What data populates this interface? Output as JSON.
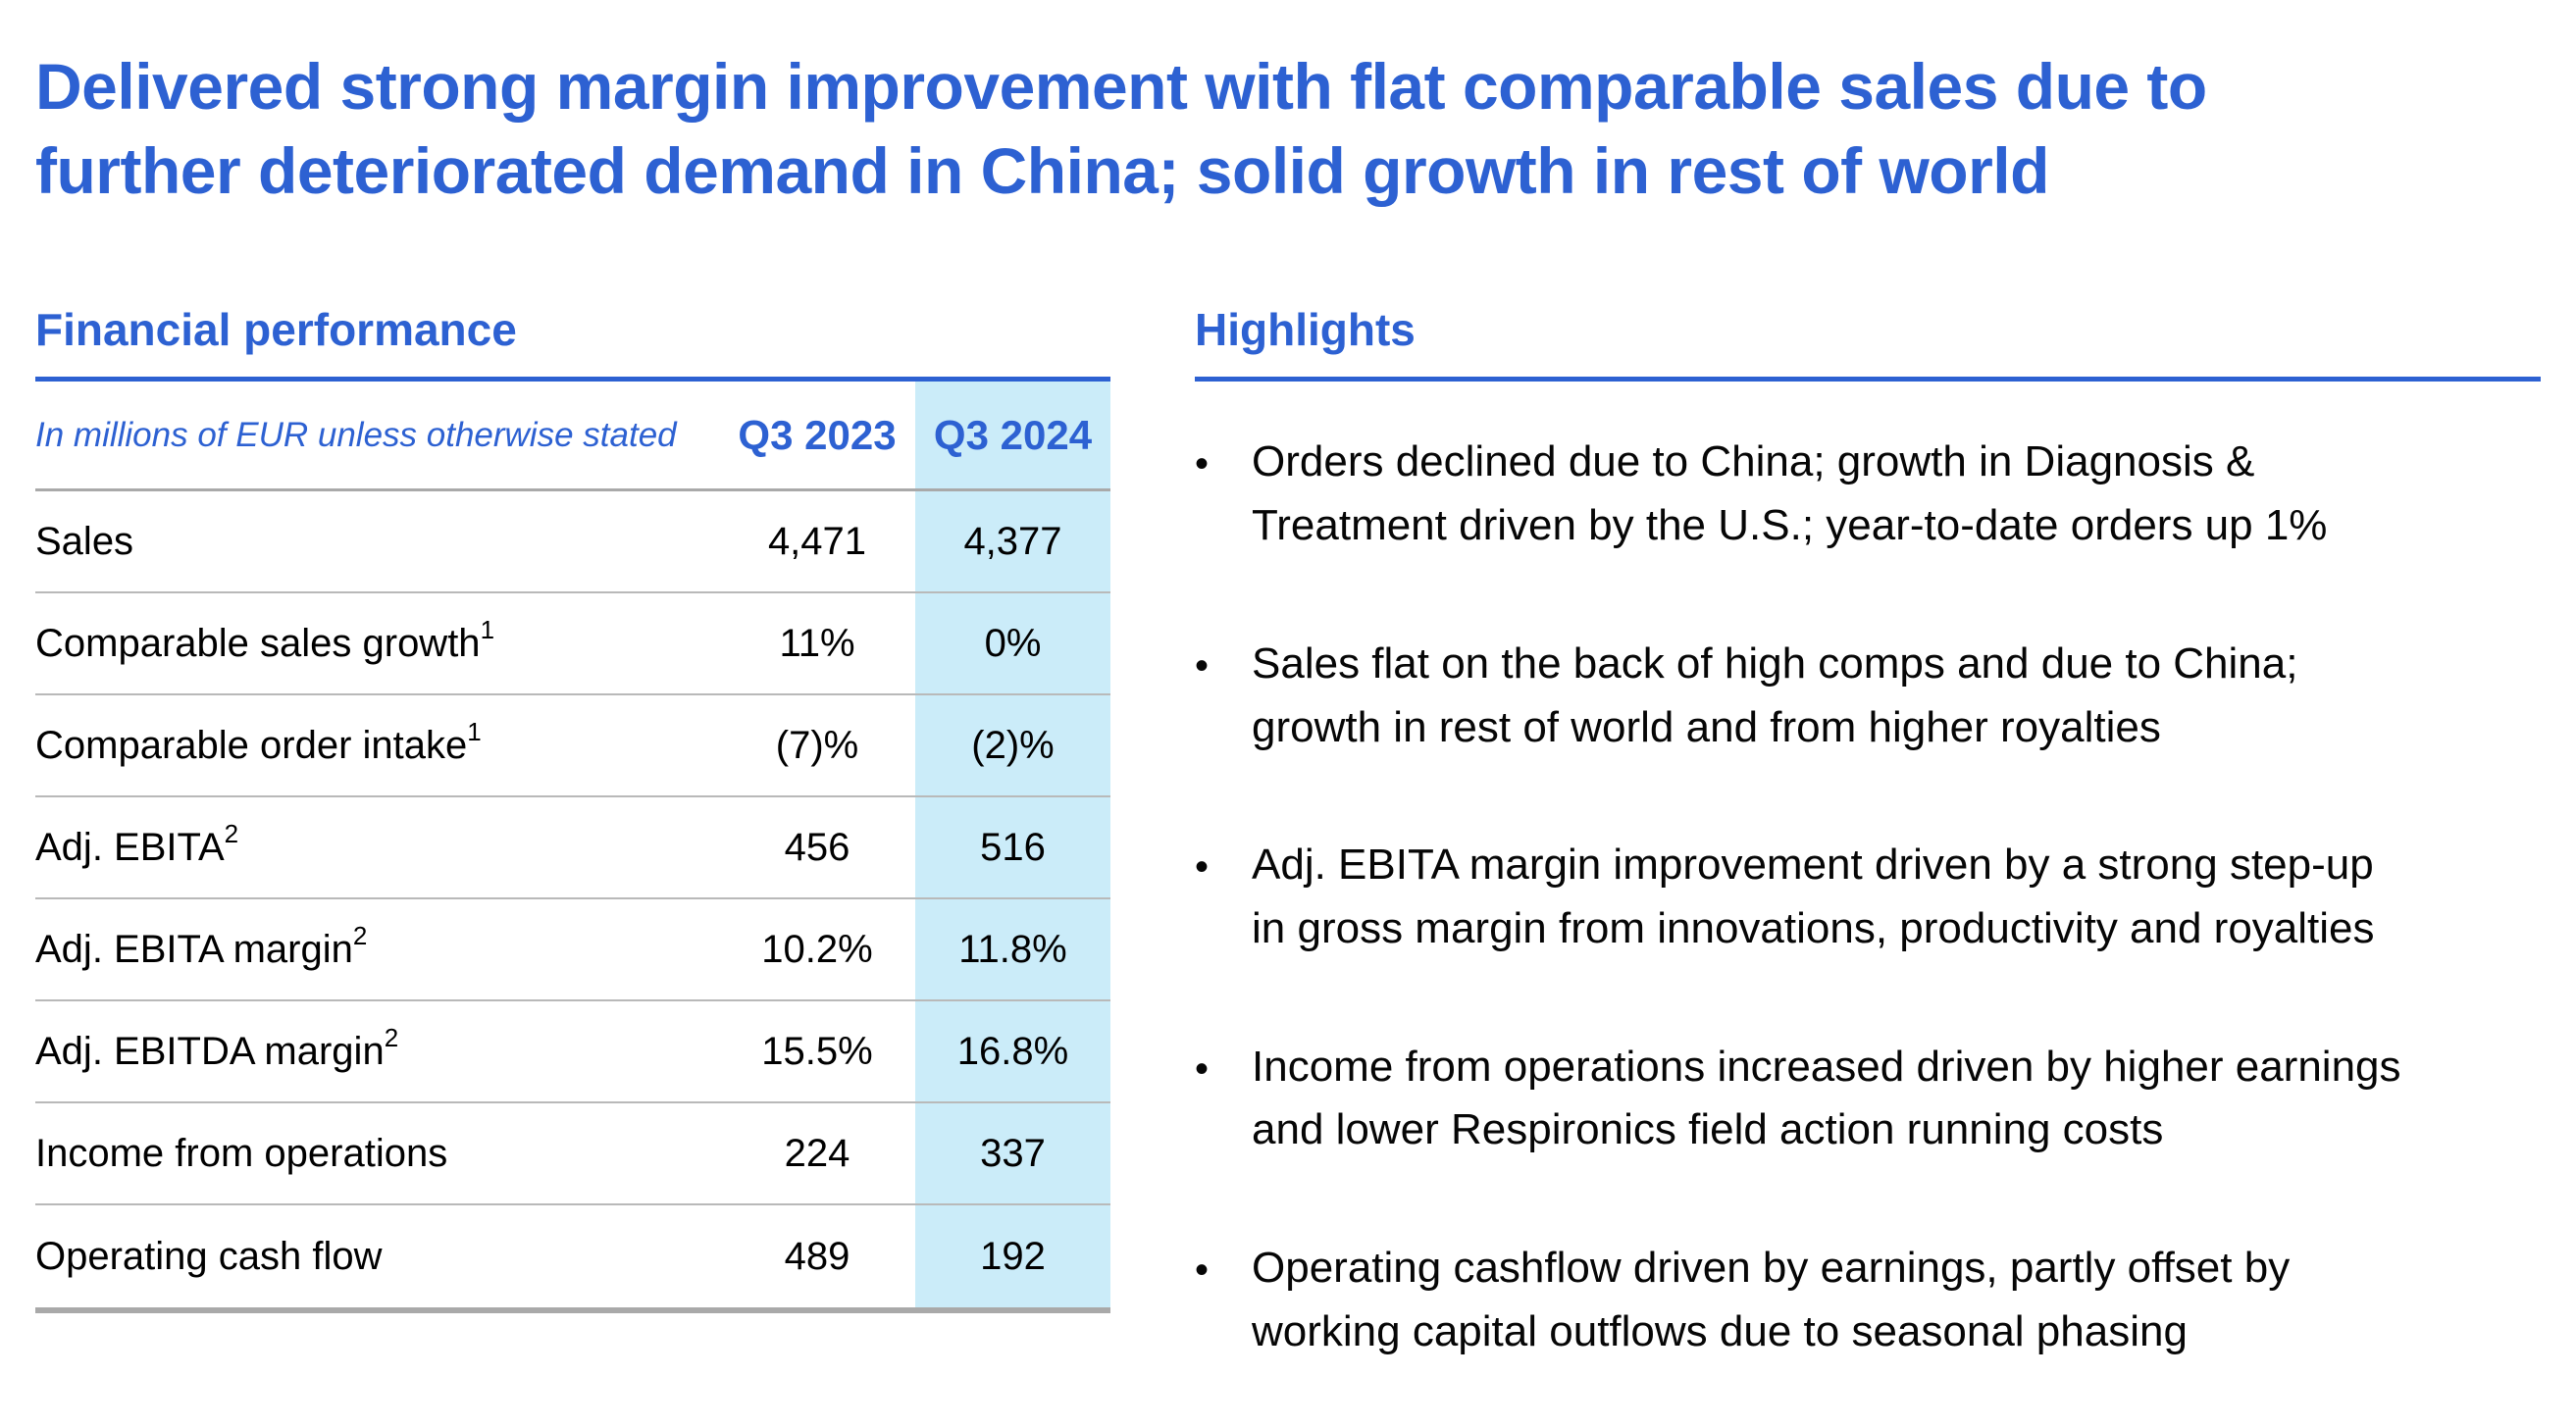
{
  "title": {
    "lines": [
      "Delivered strong margin improvement with flat comparable sales due to",
      "further deteriorated demand in China; solid growth in rest of world"
    ]
  },
  "colors": {
    "accent_blue": "#2d61d2",
    "highlight_column_bg": "#cbecf9",
    "separator_gray": "#b9b9b9"
  },
  "financial": {
    "heading": "Financial performance",
    "note": "In millions of EUR unless otherwise stated",
    "columns": [
      "Q3 2023",
      "Q3 2024"
    ],
    "rows": [
      {
        "label": "Sales",
        "sup": "",
        "q3_2023": "4,471",
        "q3_2024": "4,377"
      },
      {
        "label": "Comparable sales growth",
        "sup": "1",
        "q3_2023": "11%",
        "q3_2024": "0%"
      },
      {
        "label": "Comparable order intake",
        "sup": "1",
        "q3_2023": "(7)%",
        "q3_2024": "(2)%"
      },
      {
        "label": "Adj. EBITA",
        "sup": "2",
        "q3_2023": "456",
        "q3_2024": "516"
      },
      {
        "label": "Adj. EBITA margin",
        "sup": "2",
        "q3_2023": "10.2%",
        "q3_2024": "11.8%"
      },
      {
        "label": "Adj. EBITDA margin",
        "sup": "2",
        "q3_2023": "15.5%",
        "q3_2024": "16.8%"
      },
      {
        "label": "Income from operations",
        "sup": "",
        "q3_2023": "224",
        "q3_2024": "337"
      },
      {
        "label": "Operating cash flow",
        "sup": "",
        "q3_2023": "489",
        "q3_2024": "192"
      }
    ]
  },
  "highlights": {
    "heading": "Highlights",
    "bullets": [
      {
        "lines": [
          "Orders declined due to China; growth in Diagnosis &",
          "Treatment driven by the U.S.; year-to-date orders up 1%"
        ]
      },
      {
        "lines": [
          "Sales flat on the back of high comps and due to China;",
          "growth in rest of world and from higher royalties"
        ]
      },
      {
        "lines": [
          "Adj. EBITA margin improvement driven by a strong step-up",
          "in gross margin from innovations, productivity and royalties"
        ]
      },
      {
        "lines": [
          "Income from operations increased driven by higher earnings",
          "and lower Respironics field action running costs"
        ]
      },
      {
        "lines": [
          "Operating cashflow driven by earnings, partly offset by",
          "working capital outflows due to seasonal phasing"
        ]
      }
    ]
  }
}
